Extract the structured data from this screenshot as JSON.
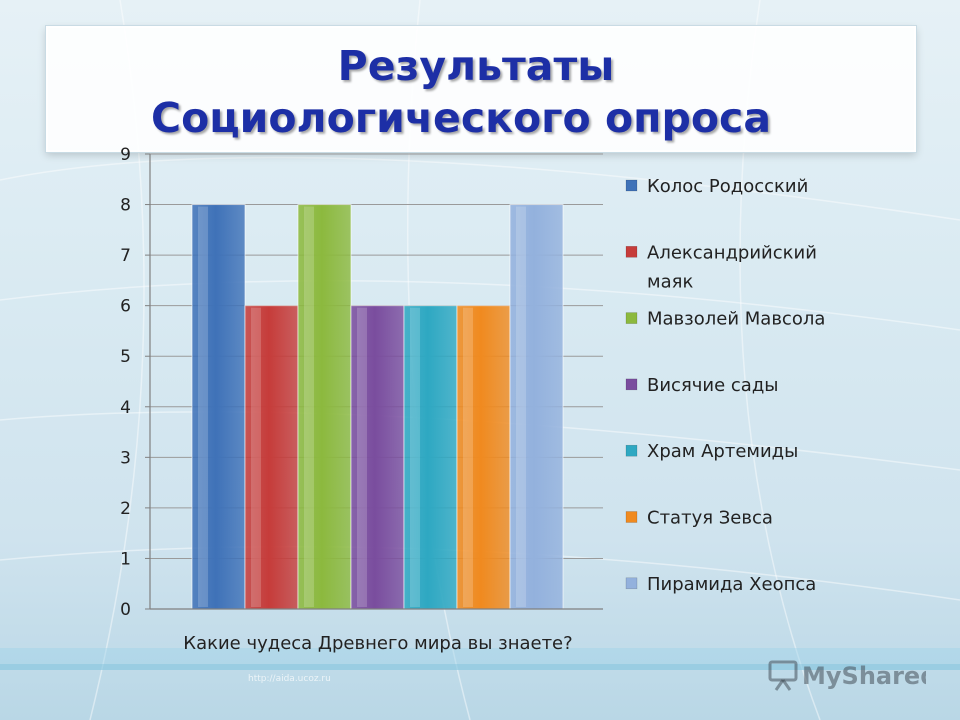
{
  "title": {
    "line1": "Результаты",
    "line2": "Социологического опроса"
  },
  "chart_data": {
    "type": "bar",
    "xlabel": "Какие чудеса Древнего мира вы знаете?",
    "ylim": [
      0,
      9
    ],
    "yticks": [
      0,
      1,
      2,
      3,
      4,
      5,
      6,
      7,
      8,
      9
    ],
    "grid": "horizontal",
    "legend_position": "right",
    "series": [
      {
        "name": "Колос Родосский",
        "value": 8,
        "color": "#3f72b8"
      },
      {
        "name": "Александрийский маяк",
        "value": 6,
        "color": "#c63c3a"
      },
      {
        "name": "Мавзолей Мавсола",
        "value": 8,
        "color": "#8cb93e"
      },
      {
        "name": "Висячие сады",
        "value": 6,
        "color": "#7a4d9e"
      },
      {
        "name": "Храм Артемиды",
        "value": 6,
        "color": "#2ea8c2"
      },
      {
        "name": "Статуя Зевса",
        "value": 6,
        "color": "#f08a1f"
      },
      {
        "name": "Пирамида Хеопса",
        "value": 8,
        "color": "#93b1dd"
      }
    ]
  },
  "watermark": {
    "url": "http://aida.ucoz.ru",
    "logo_text": "MyShared",
    "logo_icon": "presentation-board-icon"
  }
}
